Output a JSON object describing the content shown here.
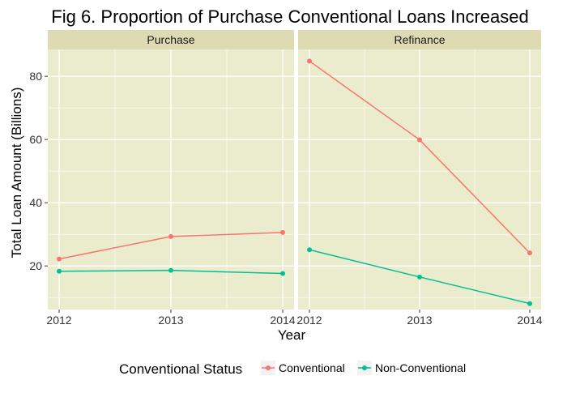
{
  "chart_data": {
    "type": "line",
    "title": "Fig 6. Proportion of Purchase Conventional Loans Increased",
    "xlabel": "Year",
    "ylabel": "Total Loan Amount (Billions)",
    "x": [
      "2012",
      "2013",
      "2014"
    ],
    "ylim": [
      6.2,
      88.5
    ],
    "yticks": [
      20,
      40,
      60,
      80
    ],
    "grid": true,
    "legend": {
      "title": "Conventional Status",
      "position": "bottom",
      "entries": [
        "Conventional",
        "Non-Conventional"
      ]
    },
    "facets": [
      {
        "label": "Purchase",
        "series": [
          {
            "name": "Conventional",
            "values": [
              22.2,
              29.3,
              30.6
            ]
          },
          {
            "name": "Non-Conventional",
            "values": [
              18.3,
              18.6,
              17.6
            ]
          }
        ]
      },
      {
        "label": "Refinance",
        "series": [
          {
            "name": "Conventional",
            "values": [
              84.8,
              59.9,
              24.1
            ]
          },
          {
            "name": "Non-Conventional",
            "values": [
              25.1,
              16.5,
              8.1
            ]
          }
        ]
      }
    ]
  },
  "colors": {
    "Conventional": "#f8766d",
    "Non-Conventional": "#00c094",
    "panel_bg": "#ebebcd",
    "strip_bg": "#dedbb3",
    "grid": "#ffffff"
  }
}
